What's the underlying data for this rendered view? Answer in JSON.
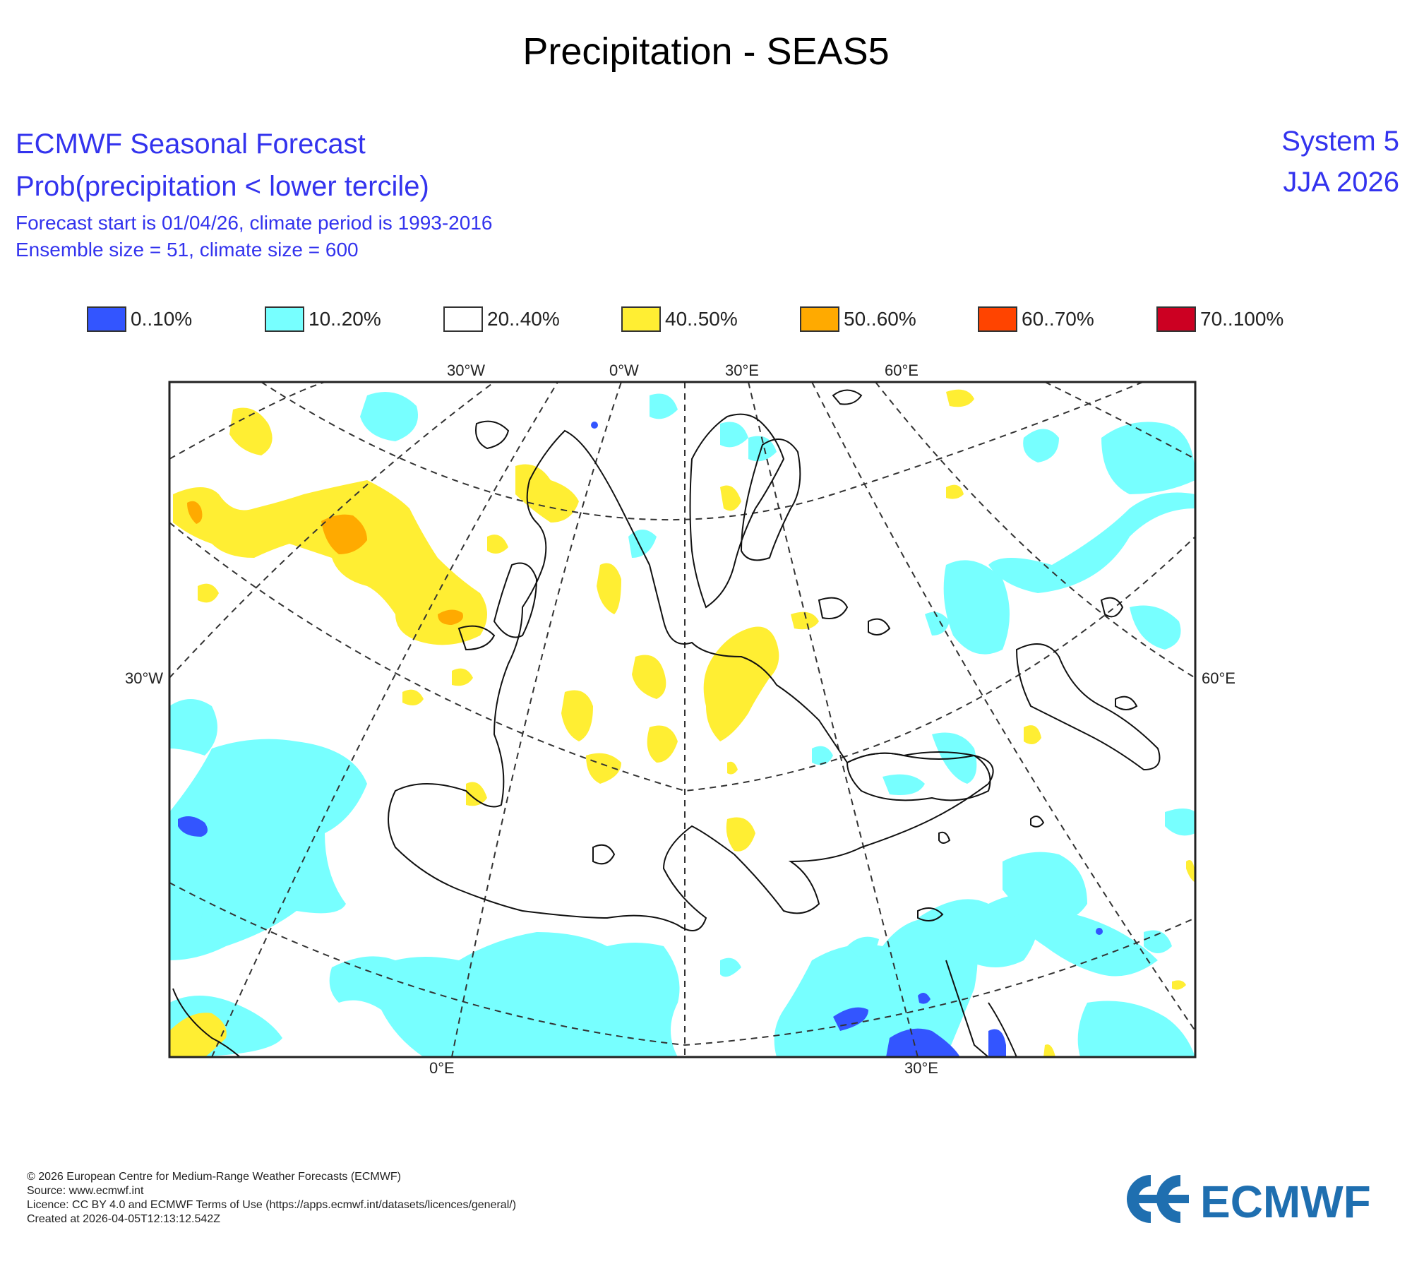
{
  "title": "Precipitation - SEAS5",
  "header": {
    "line1": "ECMWF Seasonal Forecast",
    "line2": "Prob(precipitation < lower tercile)",
    "line3": "Forecast start is 01/04/26, climate period is 1993-2016",
    "line4": "Ensemble size = 51, climate size = 600",
    "system": "System 5",
    "season": "JJA 2026"
  },
  "legend": [
    {
      "label": "0..10%",
      "color": "#3355ff"
    },
    {
      "label": "10..20%",
      "color": "#77ffff"
    },
    {
      "label": "20..40%",
      "color": "#ffffff"
    },
    {
      "label": "40..50%",
      "color": "#ffee33"
    },
    {
      "label": "50..60%",
      "color": "#ffaa00"
    },
    {
      "label": "60..70%",
      "color": "#ff4400"
    },
    {
      "label": "70..100%",
      "color": "#cc0022"
    }
  ],
  "map": {
    "top_labels": [
      "30°W",
      "0°W",
      "30°E",
      "60°E"
    ],
    "left_label": "30°W",
    "right_label": "60°E",
    "bottom_labels": [
      "0°E",
      "30°E"
    ]
  },
  "footer": {
    "copyright": "© 2026 European Centre for Medium-Range Weather Forecasts (ECMWF)",
    "source": "Source: www.ecmwf.int",
    "licence": "Licence: CC BY 4.0 and ECMWF Terms of Use (https://apps.ecmwf.int/datasets/licences/general/)",
    "created": "Created at 2026-04-05T12:13:12.542Z",
    "logo_text": "ECMWF"
  }
}
